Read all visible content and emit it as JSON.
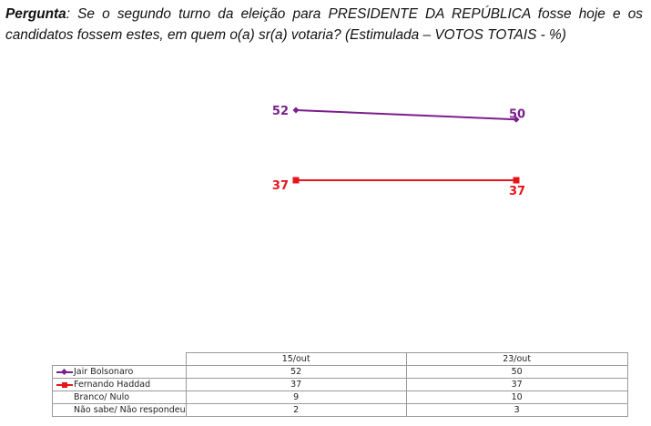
{
  "question": {
    "label": "Pergunta",
    "text": ": Se o segundo turno da eleição para PRESIDENTE DA REPÚBLICA fosse hoje e os candidatos fossem estes, em quem o(a) sr(a) votaria? (Estimulada – VOTOS TOTAIS - %)"
  },
  "chart_data": {
    "type": "line",
    "x": [
      "15/out",
      "23/out"
    ],
    "series": [
      {
        "name": "Jair Bolsonaro",
        "values": [
          52,
          50
        ],
        "color": "#7b1f8c",
        "marker": "diamond"
      },
      {
        "name": "Fernando Haddad",
        "values": [
          37,
          37
        ],
        "color": "#e8141c",
        "marker": "square"
      },
      {
        "name": "Branco/ Nulo",
        "values": [
          9,
          10
        ],
        "color": "",
        "marker": "none"
      },
      {
        "name": "Não sabe/ Não respondeu",
        "values": [
          2,
          3
        ],
        "color": "",
        "marker": "none"
      }
    ],
    "plotted_series": 2,
    "data_labels": true,
    "grid": false,
    "legend": "data-table-below"
  },
  "table": {
    "columns": [
      "15/out",
      "23/out"
    ]
  }
}
